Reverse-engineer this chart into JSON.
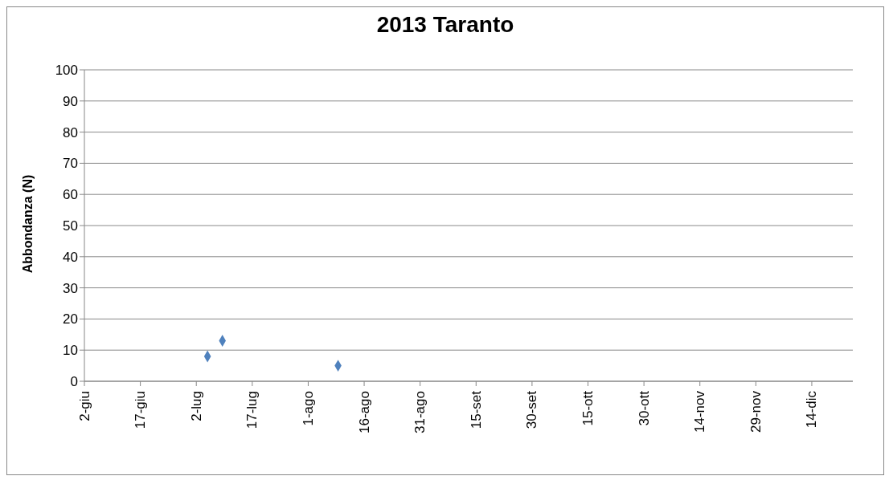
{
  "chart_data": {
    "type": "scatter",
    "title": "2013 Taranto",
    "ylabel": "Abbondanza (N)",
    "x": [
      "2013-07-05",
      "2013-07-09",
      "2013-08-09"
    ],
    "values": [
      8,
      13,
      5
    ],
    "color": "#4f81bd",
    "marker": "diamond",
    "xlim": [
      "2013-06-02",
      "2013-12-25"
    ],
    "xticks": [
      {
        "value": "2013-06-02",
        "label": "2-giu"
      },
      {
        "value": "2013-06-17",
        "label": "17-giu"
      },
      {
        "value": "2013-07-02",
        "label": "2-lug"
      },
      {
        "value": "2013-07-17",
        "label": "17-lug"
      },
      {
        "value": "2013-08-01",
        "label": "1-ago"
      },
      {
        "value": "2013-08-16",
        "label": "16-ago"
      },
      {
        "value": "2013-08-31",
        "label": "31-ago"
      },
      {
        "value": "2013-09-15",
        "label": "15-set"
      },
      {
        "value": "2013-09-30",
        "label": "30-set"
      },
      {
        "value": "2013-10-15",
        "label": "15-ott"
      },
      {
        "value": "2013-10-30",
        "label": "30-ott"
      },
      {
        "value": "2013-11-14",
        "label": "14-nov"
      },
      {
        "value": "2013-11-29",
        "label": "29-nov"
      },
      {
        "value": "2013-12-14",
        "label": "14-dic"
      }
    ],
    "ylim": [
      0,
      100
    ],
    "yticks": [
      0,
      10,
      20,
      30,
      40,
      50,
      60,
      70,
      80,
      90,
      100
    ],
    "grid": "y"
  }
}
